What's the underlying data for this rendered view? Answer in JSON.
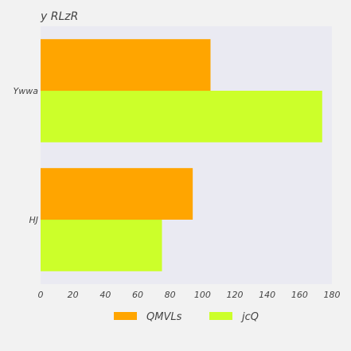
{
  "chart_data": {
    "type": "bar",
    "orientation": "horizontal",
    "title": "y RLzR",
    "categories": [
      "Ywwa",
      "HJ"
    ],
    "series": [
      {
        "name": "QMVLs",
        "values": [
          105,
          94
        ],
        "color": "#ffa500"
      },
      {
        "name": "jcQ",
        "values": [
          174,
          75
        ],
        "color": "#ccff2a"
      }
    ],
    "xlim": [
      0,
      180
    ],
    "xticks": [
      0,
      20,
      40,
      60,
      80,
      100,
      120,
      140,
      160,
      180
    ],
    "grid": false,
    "legend_position": "bottom",
    "plot_background": "#eaeaf2",
    "page_background": "#f2f2f2"
  }
}
